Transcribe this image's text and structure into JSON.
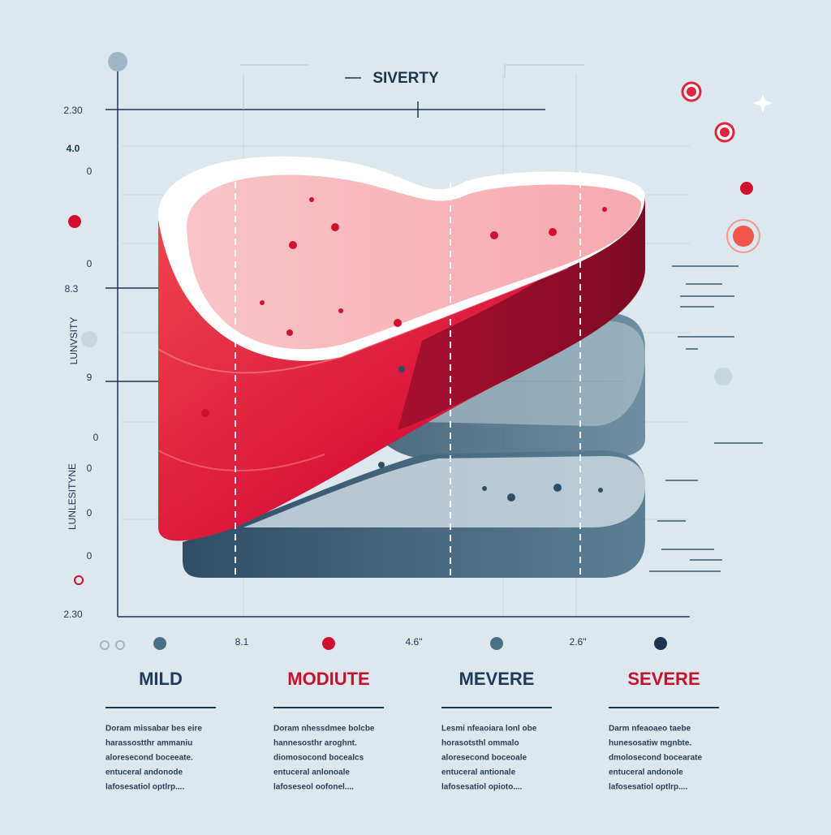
{
  "title": "SIVERTY",
  "left_labels": [
    "2.30",
    "4.0",
    "0",
    "0",
    "8.3",
    "9",
    "0",
    "0",
    "0",
    "0",
    "2.30"
  ],
  "axis_titles": [
    "LUNVSITY",
    "LUNLESITYNE"
  ],
  "bottom_labels": [
    "8.1",
    "4.6\"",
    "2.6\""
  ],
  "columns": [
    {
      "heading": "MILD",
      "text": [
        "Doram missabar bes eire",
        "harassostthr ammaniu",
        "aloresecond boceeate.",
        "entuceral andonode",
        "lafosesatiol optlrp...."
      ]
    },
    {
      "heading": "MODIUTE",
      "text": [
        "Doram nhessdmee bolcbe",
        "hannesosthr aroghnt.",
        "diomosocond bocealcs",
        "entuceral anlonoale",
        "lafoseseol oofonel...."
      ]
    },
    {
      "heading": "MEVERE",
      "text": [
        "Lesmi nfeaoiara lonl obe",
        "horasotsthl ommalo",
        "aloresecond boceoale",
        "entuceral antionale",
        "lafosesatiol opioto...."
      ]
    },
    {
      "heading": "SEVERE",
      "text": [
        "Darm nfeaoaeo taebe",
        "hunesosatiw mgnbte.",
        "dmolosecond bocearate",
        "entuceral andonole",
        "lafosesatiol optlrp...."
      ]
    }
  ]
}
